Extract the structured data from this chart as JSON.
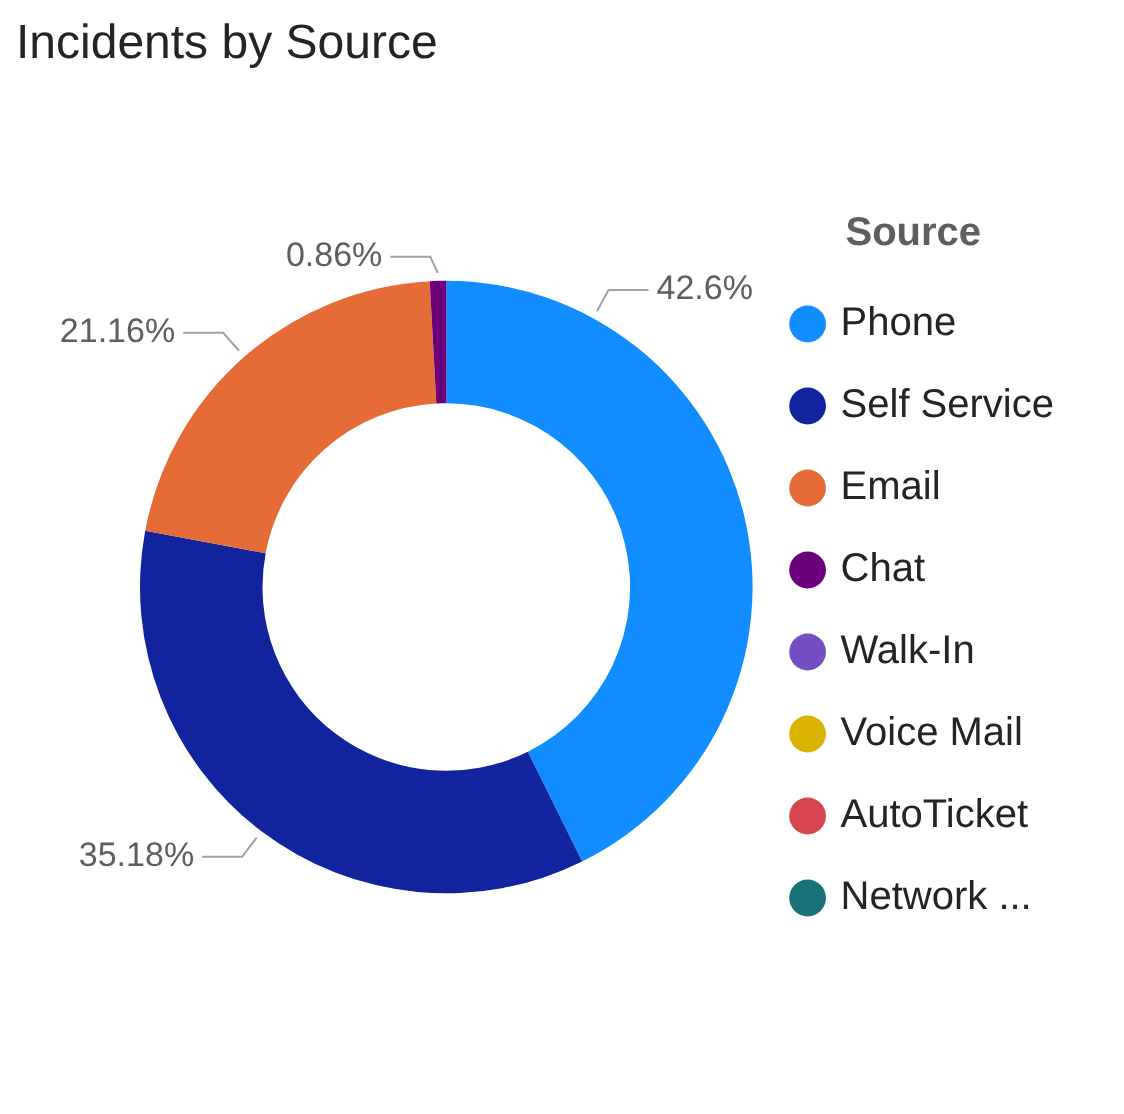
{
  "chart_data": {
    "type": "donut",
    "title": "Incidents by Source",
    "legend_title": "Source",
    "legend": "right",
    "categories": [
      "Phone",
      "Self Service",
      "Email",
      "Chat",
      null,
      "Walk-In",
      "Voice Mail",
      "AutoTicket",
      "Network ..."
    ],
    "values": [
      42.6,
      35.18,
      21.16,
      0.86,
      null,
      null,
      null,
      null,
      null
    ],
    "value_labels": [
      "42.6%",
      "35.18%",
      "21.16%",
      "0.86%",
      null,
      null,
      null,
      null,
      null
    ],
    "colors": [
      "#118dff",
      "#12239e",
      "#e66c37",
      "#6b007b",
      "#e044a7",
      "#744ec2",
      "#d9b300",
      "#d64550",
      "#197278"
    ]
  }
}
